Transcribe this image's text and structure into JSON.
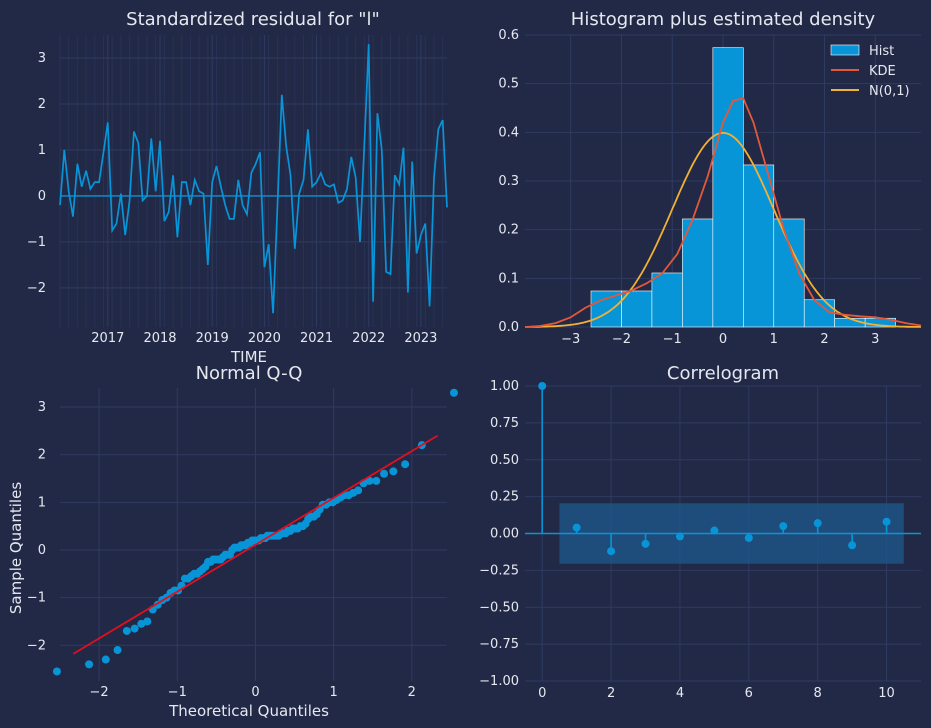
{
  "chart_data": [
    {
      "type": "line",
      "title": "Standardized residual for \"l\"",
      "xlabel": "TIME",
      "ylabel": "",
      "x_tick_labels": [
        "2017",
        "2018",
        "2019",
        "2020",
        "2021",
        "2022",
        "2023"
      ],
      "y_ticks": [
        -2,
        -1,
        0,
        1,
        2,
        3
      ],
      "ylim": [
        -2.85,
        3.5
      ],
      "x_start": "2016-02",
      "x_end": "2023-09",
      "grid": true,
      "series": [
        {
          "values": [
            -0.2,
            1.0,
            0.1,
            -0.45,
            0.7,
            0.2,
            0.55,
            0.15,
            0.3,
            0.3,
            0.95,
            1.6,
            -0.75,
            -0.6,
            0.05,
            -0.85,
            -0.1,
            1.4,
            1.15,
            -0.1,
            0.0,
            1.25,
            0.1,
            1.2,
            -0.55,
            -0.35,
            0.45,
            -0.9,
            0.3,
            0.3,
            -0.2,
            0.35,
            0.1,
            0.05,
            -1.5,
            0.3,
            0.65,
            0.2,
            -0.2,
            -0.5,
            -0.5,
            0.35,
            -0.2,
            -0.4,
            0.5,
            0.7,
            0.95,
            -1.55,
            -1.05,
            -2.55,
            -0.25,
            2.2,
            1.1,
            0.45,
            -1.15,
            0.05,
            0.35,
            1.45,
            0.2,
            0.3,
            0.5,
            0.25,
            0.2,
            0.25,
            -0.15,
            -0.1,
            0.15,
            0.85,
            0.4,
            -1.0,
            1.15,
            3.3,
            -2.3,
            1.8,
            1.0,
            -1.65,
            -1.7,
            0.45,
            0.25,
            1.05,
            -2.1,
            0.75,
            -1.25,
            -0.85,
            -0.6,
            -2.4,
            0.4,
            1.45,
            1.65,
            -0.25
          ]
        }
      ],
      "colors": {
        "line": "#0895d8",
        "zero": "#0895d8"
      }
    },
    {
      "type": "bar",
      "title": "Histogram plus estimated density",
      "xlabel": "",
      "ylabel": "",
      "x_ticks": [
        -3,
        -2,
        -1,
        0,
        1,
        2,
        3
      ],
      "y_ticks": [
        0.0,
        0.1,
        0.2,
        0.3,
        0.4,
        0.5,
        0.6
      ],
      "xlim": [
        -3.9,
        3.9
      ],
      "ylim": [
        0,
        0.6
      ],
      "grid": true,
      "legend": {
        "position": "top-right",
        "entries": [
          "Hist",
          "KDE",
          "N(0,1)"
        ]
      },
      "bins": [
        {
          "x0": -2.6,
          "x1": -2.0,
          "value": 0.074
        },
        {
          "x0": -2.0,
          "x1": -1.4,
          "value": 0.074
        },
        {
          "x0": -1.4,
          "x1": -0.8,
          "value": 0.111
        },
        {
          "x0": -0.8,
          "x1": -0.2,
          "value": 0.222
        },
        {
          "x0": -0.2,
          "x1": 0.4,
          "value": 0.574
        },
        {
          "x0": 0.4,
          "x1": 1.0,
          "value": 0.333
        },
        {
          "x0": 1.0,
          "x1": 1.6,
          "value": 0.222
        },
        {
          "x0": 1.6,
          "x1": 2.2,
          "value": 0.056
        },
        {
          "x0": 2.2,
          "x1": 2.8,
          "value": 0.018
        },
        {
          "x0": 2.8,
          "x1": 3.4,
          "value": 0.018
        }
      ],
      "kde": {
        "x": [
          -3.9,
          -3.6,
          -3.3,
          -3.0,
          -2.7,
          -2.4,
          -2.1,
          -1.8,
          -1.5,
          -1.2,
          -0.9,
          -0.6,
          -0.3,
          0.0,
          0.2,
          0.4,
          0.6,
          0.9,
          1.2,
          1.5,
          1.8,
          2.1,
          2.4,
          2.7,
          3.0,
          3.3,
          3.6,
          3.9
        ],
        "y": [
          0.0,
          0.002,
          0.008,
          0.02,
          0.04,
          0.055,
          0.065,
          0.075,
          0.09,
          0.11,
          0.15,
          0.22,
          0.31,
          0.42,
          0.465,
          0.47,
          0.42,
          0.31,
          0.2,
          0.11,
          0.055,
          0.03,
          0.025,
          0.022,
          0.02,
          0.015,
          0.008,
          0.003
        ]
      },
      "normal": {
        "mean": 0,
        "sd": 1
      },
      "colors": {
        "hist": "#0895d8",
        "kde": "#e45839",
        "normal": "#f2b134"
      }
    },
    {
      "type": "scatter",
      "title": "Normal Q-Q",
      "xlabel": "Theoretical Quantiles",
      "ylabel": "Sample Quantiles",
      "x_ticks": [
        -2,
        -1,
        0,
        1,
        2
      ],
      "y_ticks": [
        -2,
        -1,
        0,
        1,
        2,
        3
      ],
      "xlim": [
        -2.5,
        2.45
      ],
      "ylim": [
        -2.75,
        3.4
      ],
      "grid": true,
      "line": {
        "x": [
          -2.33,
          2.33
        ],
        "y": [
          -2.18,
          2.4
        ]
      },
      "colors": {
        "points": "#0895d8",
        "line": "#e01020"
      }
    },
    {
      "type": "scatter",
      "title": "Correlogram",
      "xlabel": "",
      "ylabel": "",
      "x_ticks": [
        0,
        2,
        4,
        6,
        8,
        10
      ],
      "y_ticks": [
        -1.0,
        -0.75,
        -0.5,
        -0.25,
        0.0,
        0.25,
        0.5,
        0.75,
        1.0
      ],
      "y_tick_labels": [
        "−1.00",
        "−0.75",
        "−0.50",
        "−0.25",
        "0.00",
        "0.25",
        "0.50",
        "0.75",
        "1.00"
      ],
      "xlim": [
        -0.5,
        11.0
      ],
      "ylim": [
        -1.0,
        1.0
      ],
      "grid": true,
      "lags": [
        0,
        1,
        2,
        3,
        4,
        5,
        6,
        7,
        8,
        9,
        10
      ],
      "acf": [
        1.0,
        0.04,
        -0.12,
        -0.07,
        -0.02,
        0.02,
        -0.03,
        0.05,
        0.07,
        -0.08,
        0.08
      ],
      "confidence_band": [
        -0.205,
        0.205
      ],
      "colors": {
        "stem": "#0895d8",
        "band": "#1d5a8f"
      }
    }
  ]
}
